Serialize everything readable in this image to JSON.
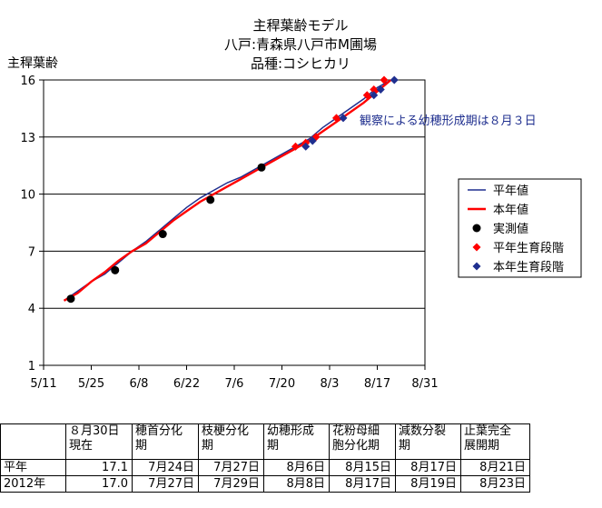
{
  "chart_data": {
    "type": "line",
    "title_lines": [
      "主稈葉齢モデル",
      "八戸:青森県八戸市M圃場",
      "品種:コシヒカリ"
    ],
    "ylabel": "主稈葉齢",
    "xlabel": "",
    "ylim": [
      1,
      16
    ],
    "yticks": [
      1,
      4,
      7,
      10,
      13,
      16
    ],
    "x_day_range": [
      0,
      81
    ],
    "xticks": [
      {
        "day": 0,
        "label": "5/11"
      },
      {
        "day": 14,
        "label": "5/25"
      },
      {
        "day": 28,
        "label": "6/8"
      },
      {
        "day": 42,
        "label": "6/22"
      },
      {
        "day": 56,
        "label": "7/6"
      },
      {
        "day": 70,
        "label": "7/20"
      },
      {
        "day": 84,
        "label": "8/3"
      },
      {
        "day": 98,
        "label": "8/17"
      },
      {
        "day": 112,
        "label": "8/31"
      }
    ],
    "x_axis_min_day": 0,
    "x_axis_max_day": 112,
    "grid": true,
    "legend_position": "right",
    "series": [
      {
        "name": "平年値",
        "kind": "line",
        "color": "#1f2f8f",
        "points": [
          [
            6,
            4.4
          ],
          [
            10,
            4.9
          ],
          [
            14,
            5.4
          ],
          [
            18,
            5.8
          ],
          [
            22,
            6.4
          ],
          [
            26,
            7.0
          ],
          [
            30,
            7.5
          ],
          [
            34,
            8.1
          ],
          [
            38,
            8.7
          ],
          [
            42,
            9.3
          ],
          [
            46,
            9.8
          ],
          [
            50,
            10.2
          ],
          [
            54,
            10.6
          ],
          [
            58,
            10.9
          ],
          [
            62,
            11.3
          ],
          [
            66,
            11.7
          ],
          [
            70,
            12.1
          ],
          [
            74,
            12.5
          ],
          [
            78,
            12.9
          ],
          [
            82,
            13.5
          ],
          [
            86,
            14.0
          ],
          [
            90,
            14.5
          ],
          [
            94,
            15.0
          ],
          [
            98,
            15.6
          ],
          [
            102,
            16.0
          ]
        ]
      },
      {
        "name": "本年値",
        "kind": "line",
        "color": "#ff0000",
        "points": [
          [
            6,
            4.4
          ],
          [
            10,
            4.8
          ],
          [
            14,
            5.4
          ],
          [
            18,
            5.9
          ],
          [
            22,
            6.5
          ],
          [
            26,
            7.0
          ],
          [
            30,
            7.4
          ],
          [
            34,
            8.0
          ],
          [
            38,
            8.6
          ],
          [
            42,
            9.1
          ],
          [
            46,
            9.6
          ],
          [
            50,
            10.0
          ],
          [
            54,
            10.4
          ],
          [
            58,
            10.8
          ],
          [
            62,
            11.2
          ],
          [
            66,
            11.6
          ],
          [
            70,
            12.0
          ],
          [
            74,
            12.4
          ],
          [
            78,
            12.8
          ],
          [
            82,
            13.3
          ],
          [
            86,
            13.8
          ],
          [
            90,
            14.3
          ],
          [
            94,
            14.8
          ],
          [
            98,
            15.4
          ],
          [
            102,
            16.0
          ]
        ]
      },
      {
        "name": "実測値",
        "kind": "marker",
        "shape": "circle",
        "color": "#000000",
        "points": [
          [
            8,
            4.5
          ],
          [
            21,
            6.0
          ],
          [
            35,
            7.9
          ],
          [
            49,
            9.7
          ],
          [
            64,
            11.4
          ]
        ]
      },
      {
        "name": "平年生育段階",
        "kind": "marker",
        "shape": "diamond",
        "color": "#ff0000",
        "points": [
          [
            74,
            12.5
          ],
          [
            77,
            12.7
          ],
          [
            80,
            13.0
          ],
          [
            86,
            14.0
          ],
          [
            95,
            15.2
          ],
          [
            97,
            15.5
          ],
          [
            100,
            16.0
          ]
        ]
      },
      {
        "name": "本年生育段階",
        "kind": "marker",
        "shape": "diamond",
        "color": "#1f2f8f",
        "points": [
          [
            77,
            12.5
          ],
          [
            79,
            12.8
          ],
          [
            88,
            14.0
          ],
          [
            97,
            15.2
          ],
          [
            99,
            15.5
          ],
          [
            103,
            16.0
          ]
        ]
      }
    ],
    "annotation": "観察による幼穂形成期は８月３日"
  },
  "table": {
    "headers": [
      "",
      "８月30日\n現在",
      "穂首分化\n期",
      "枝梗分化\n期",
      "幼穂形成\n期",
      "花粉母細\n胞分化期",
      "減数分裂\n期",
      "止葉完全\n展開期"
    ],
    "rows": [
      [
        "平年",
        "17.1",
        "7月24日",
        "7月27日",
        "8月6日",
        "8月15日",
        "8月17日",
        "8月21日"
      ],
      [
        "2012年",
        "17.0",
        "7月27日",
        "7月29日",
        "8月8日",
        "8月17日",
        "8月19日",
        "8月23日"
      ]
    ]
  }
}
